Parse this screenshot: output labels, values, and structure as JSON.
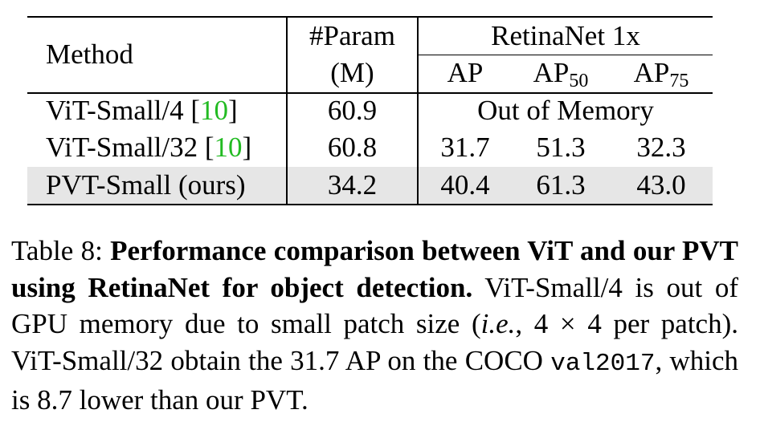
{
  "table": {
    "header": {
      "method": "Method",
      "param_line1": "#Param",
      "param_line2": "(M)",
      "group": "RetinaNet 1x",
      "ap": "AP",
      "ap50_base": "AP",
      "ap50_sub": "50",
      "ap75_base": "AP",
      "ap75_sub": "75"
    },
    "rows": [
      {
        "method": "ViT-Small/4 [",
        "cite": "10",
        "cite_close": "]",
        "param": "60.9",
        "merged": "Out of Memory"
      },
      {
        "method": "ViT-Small/32 [",
        "cite": "10",
        "cite_close": "]",
        "param": "60.8",
        "ap": "31.7",
        "ap50": "51.3",
        "ap75": "32.3"
      },
      {
        "method": "PVT-Small (ours)",
        "param": "34.2",
        "ap": "40.4",
        "ap50": "61.3",
        "ap75": "43.0",
        "highlight_color": "#e6e6e6"
      }
    ],
    "cite_color": "#22bb22"
  },
  "caption": {
    "label": "Table 8:",
    "bold": "Performance comparison between ViT and our PVT using RetinaNet for object detection.",
    "text1": "ViT-Small/4 is out of GPU memory due to small patch size (",
    "ie": "i.e.",
    "text2": ", 4 × 4 per patch). ViT-Small/32 obtain the 31.7 AP on the COCO",
    "mono": "val2017",
    "text3": ", which is 8.7 lower than our PVT."
  }
}
